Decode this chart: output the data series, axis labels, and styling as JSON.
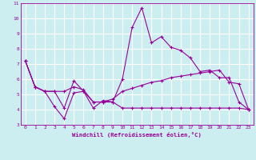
{
  "xlabel": "Windchill (Refroidissement éolien,°C)",
  "xlim": [
    -0.5,
    23.5
  ],
  "ylim": [
    3,
    11
  ],
  "yticks": [
    3,
    4,
    5,
    6,
    7,
    8,
    9,
    10,
    11
  ],
  "xticks": [
    0,
    1,
    2,
    3,
    4,
    5,
    6,
    7,
    8,
    9,
    10,
    11,
    12,
    13,
    14,
    15,
    16,
    17,
    18,
    19,
    20,
    21,
    22,
    23
  ],
  "background_color": "#cceef0",
  "line_color": "#990099",
  "grid_color": "#ffffff",
  "line1_x": [
    0,
    1,
    2,
    3,
    4,
    5,
    6,
    7,
    8,
    9,
    10,
    11,
    12,
    13,
    14,
    15,
    16,
    17,
    18,
    19,
    20,
    21,
    22,
    23
  ],
  "line1_y": [
    7.2,
    5.5,
    5.2,
    5.2,
    4.1,
    5.9,
    5.2,
    4.1,
    4.6,
    4.5,
    6.0,
    9.4,
    10.7,
    8.4,
    8.8,
    8.1,
    7.9,
    7.4,
    6.5,
    6.6,
    6.1,
    6.1,
    4.5,
    4.0
  ],
  "line2_x": [
    0,
    1,
    2,
    3,
    4,
    5,
    6,
    7,
    8,
    9,
    10,
    11,
    12,
    13,
    14,
    15,
    16,
    17,
    18,
    19,
    20,
    21,
    22,
    23
  ],
  "line2_y": [
    7.2,
    5.5,
    5.2,
    5.2,
    5.2,
    5.5,
    5.3,
    4.5,
    4.5,
    4.7,
    5.2,
    5.4,
    5.6,
    5.8,
    5.9,
    6.1,
    6.2,
    6.3,
    6.4,
    6.5,
    6.6,
    5.8,
    5.7,
    4.0
  ],
  "line3_x": [
    0,
    1,
    2,
    3,
    4,
    5,
    6,
    7,
    8,
    9,
    10,
    11,
    12,
    13,
    14,
    15,
    16,
    17,
    18,
    19,
    20,
    21,
    22,
    23
  ],
  "line3_y": [
    7.2,
    5.5,
    5.2,
    4.2,
    3.4,
    5.1,
    5.2,
    4.5,
    4.5,
    4.5,
    4.1,
    4.1,
    4.1,
    4.1,
    4.1,
    4.1,
    4.1,
    4.1,
    4.1,
    4.1,
    4.1,
    4.1,
    4.1,
    4.0
  ]
}
